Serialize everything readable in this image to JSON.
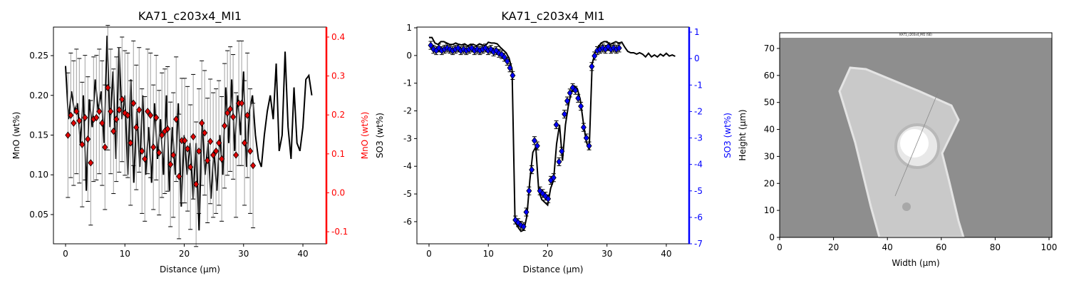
{
  "chart_data": [
    {
      "type": "line",
      "title": "KA71_c203x4_MI1",
      "xlabel": "Distance (µm)",
      "ylabel": "MnO (wt%)",
      "y2label": "MnO (wt%)",
      "y2color": "#ff0000",
      "xlim": [
        -2.04,
        43.96
      ],
      "xticks": [
        0,
        10,
        20,
        30,
        40
      ],
      "ylim": [
        0.0132,
        0.2859
      ],
      "yticks": [
        0.05,
        {
          "value": 0.1,
          "label": "0.10"
        },
        0.15,
        {
          "value": 0.2,
          "label": "0.20"
        },
        0.25
      ],
      "y2lim": [
        -0.131,
        0.4256
      ],
      "y2ticks": [
        -0.1,
        {
          "value": 0,
          "label": "0.0"
        },
        0.1,
        0.2,
        0.3,
        0.4
      ],
      "series": [
        {
          "color": "#000000",
          "x": [
            0,
            0.5,
            1,
            1.5,
            2,
            2.5,
            3,
            3.5,
            4,
            4.5,
            5,
            5.5,
            6,
            6.5,
            7,
            7.5,
            8,
            8.5,
            9,
            9.5,
            10,
            10.5,
            11,
            11.5,
            12,
            12.5,
            13,
            13.5,
            14,
            14.5,
            15,
            15.5,
            16,
            16.5,
            17,
            17.5,
            18,
            18.5,
            19,
            19.5,
            20,
            20.5,
            21,
            21.5,
            22,
            22.5,
            23,
            23.5,
            24,
            24.5,
            25,
            25.5,
            26,
            26.5,
            27,
            27.5,
            28,
            28.5,
            29,
            29.5,
            30,
            30.5,
            31,
            31.5,
            32,
            32.5,
            33,
            33.5,
            34,
            34.5,
            35,
            35.5,
            36,
            36.5,
            37,
            37.5,
            38,
            38.5,
            39,
            39.5,
            40,
            40.5,
            41,
            41.5
          ],
          "values": [
            0.237,
            0.17,
            0.205,
            0.18,
            0.19,
            0.14,
            0.2,
            0.08,
            0.195,
            0.16,
            0.22,
            0.18,
            0.205,
            0.14,
            0.275,
            0.16,
            0.23,
            0.12,
            0.26,
            0.17,
            0.2,
            0.1,
            0.22,
            0.09,
            0.18,
            0.11,
            0.2,
            0.1,
            0.16,
            0.09,
            0.19,
            0.12,
            0.17,
            0.1,
            0.2,
            0.08,
            0.16,
            0.1,
            0.19,
            0.06,
            0.15,
            0.1,
            0.14,
            0.07,
            0.14,
            0.03,
            0.17,
            0.1,
            0.14,
            0.07,
            0.13,
            0.08,
            0.15,
            0.1,
            0.21,
            0.14,
            0.22,
            0.13,
            0.2,
            0.15,
            0.23,
            0.11,
            0.18,
            0.2,
            0.15,
            0.12,
            0.11,
            0.15,
            0.18,
            0.2,
            0.17,
            0.24,
            0.13,
            0.15,
            0.255,
            0.16,
            0.12,
            0.21,
            0.14,
            0.13,
            0.16,
            0.22,
            0.225,
            0.2
          ]
        },
        {
          "color": "#e00000",
          "axis": "y2",
          "marker": "diamond",
          "error": 0.16,
          "error_color": "#a0a0a0",
          "x": [
            0.4,
            0.88,
            1.36,
            1.84,
            2.32,
            2.8,
            3.28,
            3.76,
            4.24,
            4.72,
            5.2,
            5.68,
            6.16,
            6.64,
            7.12,
            7.6,
            8.08,
            8.56,
            9.04,
            9.52,
            10.0,
            10.48,
            10.96,
            11.44,
            11.92,
            12.4,
            12.88,
            13.36,
            13.84,
            14.32,
            14.8,
            15.28,
            15.76,
            16.24,
            16.72,
            17.2,
            17.68,
            18.16,
            18.64,
            19.12,
            19.6,
            20.08,
            20.56,
            21.04,
            21.52,
            22.0,
            22.48,
            22.96,
            23.44,
            23.92,
            24.4,
            24.88,
            25.36,
            25.84,
            26.32,
            26.8,
            27.28,
            27.76,
            28.24,
            28.72,
            29.2,
            29.68,
            30.16,
            30.64,
            31.12,
            31.6
          ],
          "values": [
            0.148,
            0.199,
            0.179,
            0.209,
            0.185,
            0.124,
            0.193,
            0.138,
            0.077,
            0.189,
            0.193,
            0.209,
            0.179,
            0.117,
            0.27,
            0.209,
            0.158,
            0.189,
            0.213,
            0.24,
            0.205,
            0.199,
            0.128,
            0.23,
            0.168,
            0.213,
            0.107,
            0.087,
            0.209,
            0.199,
            0.117,
            0.193,
            0.103,
            0.148,
            0.158,
            0.164,
            0.073,
            0.097,
            0.189,
            0.042,
            0.134,
            0.134,
            0.113,
            0.066,
            0.144,
            0.022,
            0.107,
            0.179,
            0.154,
            0.083,
            0.132,
            0.097,
            0.107,
            0.128,
            0.087,
            0.172,
            0.205,
            0.215,
            0.195,
            0.097,
            0.23,
            0.23,
            0.128,
            0.199,
            0.107,
            0.07
          ]
        }
      ]
    },
    {
      "type": "line",
      "title": "KA71_c203x4_MI1",
      "xlabel": "Distance (µm)",
      "ylabel": "SO3 (wt%)",
      "y2label": "SO3 (wt%)",
      "y2color": "#0000ff",
      "xlim": [
        -2.04,
        43.85
      ],
      "xticks": [
        0,
        10,
        20,
        30,
        40
      ],
      "ylim": [
        -6.8,
        1.026
      ],
      "yticks": [
        -6,
        -5,
        -4,
        -3,
        -2,
        -1,
        0,
        1
      ],
      "y2lim": [
        -7,
        1.19
      ],
      "y2ticks": [
        -7,
        -6,
        -5,
        -4,
        -3,
        -2,
        -1,
        0,
        1
      ],
      "series": [
        {
          "color": "#000000",
          "x": [
            0,
            0.5,
            1,
            1.5,
            2,
            2.5,
            3,
            3.5,
            4,
            4.5,
            5,
            5.5,
            6,
            6.5,
            7,
            7.5,
            8,
            8.5,
            9,
            9.5,
            10,
            10.5,
            11,
            11.5,
            12,
            12.5,
            13,
            13.5,
            14,
            14.5,
            15,
            15.5,
            16,
            16.5,
            17,
            17.5,
            18,
            18.5,
            19,
            19.5,
            20,
            20.5,
            21,
            21.5,
            22,
            22.5,
            23,
            23.5,
            24,
            24.5,
            25,
            25.5,
            26,
            26.5,
            27,
            27.5,
            28,
            28.5,
            29,
            29.5,
            30,
            30.5,
            31,
            31.5,
            32,
            32.5,
            33,
            33.5,
            34,
            34.5,
            35,
            35.5,
            36,
            36.5,
            37,
            37.5,
            38,
            38.5,
            39,
            39.5,
            40,
            40.5,
            41,
            41.5
          ],
          "values": [
            0.65,
            0.65,
            0.45,
            0.4,
            0.5,
            0.5,
            0.45,
            0.4,
            0.4,
            0.45,
            0.4,
            0.38,
            0.42,
            0.35,
            0.4,
            0.4,
            0.35,
            0.42,
            0.38,
            0.35,
            0.48,
            0.45,
            0.45,
            0.42,
            0.3,
            0.2,
            0.1,
            -0.1,
            -0.5,
            -6.0,
            -6.2,
            -6.35,
            -6.3,
            -5.8,
            -4.5,
            -3.5,
            -3.3,
            -4.9,
            -5.2,
            -5.3,
            -5.4,
            -4.8,
            -4.5,
            -3.2,
            -2.5,
            -3.8,
            -2.5,
            -1.8,
            -1.3,
            -1.1,
            -1.2,
            -1.6,
            -2.4,
            -3.1,
            -3.4,
            -0.3,
            0.1,
            0.3,
            0.45,
            0.5,
            0.5,
            0.4,
            0.45,
            0.5,
            0.45,
            0.48,
            0.3,
            0.15,
            0.1,
            0.1,
            0.05,
            0.1,
            0.05,
            -0.05,
            0.08,
            -0.05,
            0.02,
            -0.05,
            0.05,
            -0.02,
            0.08,
            -0.02,
            0.02,
            -0.03
          ]
        },
        {
          "color": "#0000ff",
          "axis": "y2",
          "marker": "diamond",
          "error": 0.15,
          "error_color": "#000000",
          "x": [
            0.3,
            0.76,
            1.22,
            1.68,
            2.14,
            2.6,
            3.06,
            3.52,
            3.98,
            4.44,
            4.9,
            5.36,
            5.82,
            6.28,
            6.74,
            7.2,
            7.66,
            8.12,
            8.58,
            9.04,
            9.5,
            9.96,
            10.42,
            10.88,
            11.34,
            11.8,
            12.26,
            12.72,
            13.18,
            13.64,
            14.1,
            14.56,
            15.02,
            15.48,
            15.94,
            16.4,
            16.86,
            17.32,
            17.78,
            18.24,
            18.7,
            19.16,
            19.62,
            20.08,
            20.54,
            21.0,
            21.46,
            21.92,
            22.38,
            22.84,
            23.3,
            23.76,
            24.22,
            24.68,
            25.14,
            25.6,
            26.06,
            26.52,
            26.98,
            27.44,
            27.9,
            28.36,
            28.82,
            29.28,
            29.74,
            30.2,
            30.66,
            31.12,
            31.58,
            32.04
          ],
          "values": [
            0.5,
            0.35,
            0.3,
            0.4,
            0.3,
            0.35,
            0.4,
            0.35,
            0.3,
            0.35,
            0.4,
            0.3,
            0.35,
            0.3,
            0.35,
            0.4,
            0.3,
            0.35,
            0.3,
            0.35,
            0.4,
            0.3,
            0.35,
            0.25,
            0.3,
            0.2,
            0.15,
            0.05,
            -0.1,
            -0.35,
            -0.64,
            -6.1,
            -6.2,
            -6.3,
            -6.35,
            -5.8,
            -5.0,
            -4.2,
            -3.1,
            -3.3,
            -5.0,
            -5.1,
            -5.2,
            -5.3,
            -4.6,
            -4.5,
            -2.5,
            -3.9,
            -3.5,
            -2.1,
            -1.6,
            -1.3,
            -1.1,
            -1.2,
            -1.5,
            -1.8,
            -2.6,
            -3.0,
            -3.3,
            -0.3,
            0.1,
            0.3,
            0.35,
            0.4,
            0.35,
            0.45,
            0.35,
            0.4,
            0.35,
            0.4
          ]
        }
      ]
    },
    {
      "type": "image",
      "image_title": "KA71_c203x4_MI1 (SE)",
      "xlabel": "Width (µm)",
      "ylabel": "Height (µm)",
      "xlim": [
        0,
        101.06
      ],
      "xticks": [
        0,
        20,
        40,
        60,
        80,
        100
      ],
      "ylim": [
        0,
        75.8
      ],
      "yticks": [
        0,
        10,
        20,
        30,
        40,
        50,
        60,
        70
      ]
    }
  ]
}
